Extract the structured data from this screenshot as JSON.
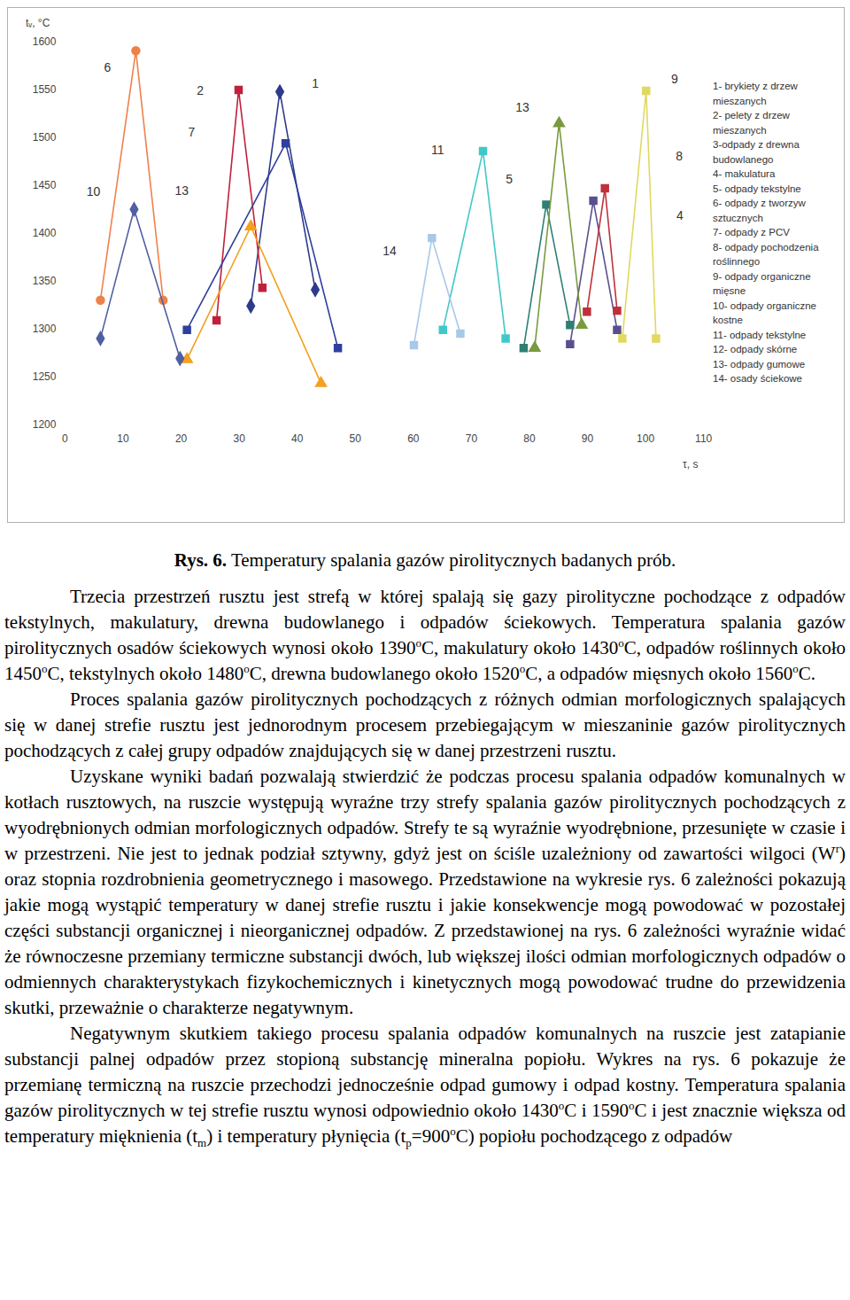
{
  "chart_data": {
    "type": "line",
    "xlabel": "τ, s",
    "ylabel": "tᵥ, °C",
    "xlim": [
      0,
      110
    ],
    "xticks": [
      0,
      10,
      20,
      30,
      40,
      50,
      60,
      70,
      80,
      90,
      100,
      110
    ],
    "ylim": [
      1200,
      1600
    ],
    "yticks": [
      1200,
      1250,
      1300,
      1350,
      1400,
      1450,
      1500,
      1550,
      1600
    ],
    "legend": "right",
    "grid": false,
    "series": [
      {
        "name": "1- brykiety z drzew mieszanych",
        "color": "#2e3a8c",
        "marker": "diamond",
        "x": [
          32,
          37,
          43.1
        ],
        "values": [
          1324,
          1548,
          1341
        ]
      },
      {
        "name": "2- pelety z drzew mieszanych",
        "color": "#c0203c",
        "marker": "square",
        "x": [
          26.1,
          29.9,
          34
        ],
        "values": [
          1309,
          1550,
          1343
        ]
      },
      {
        "name": "3-odpady z drewna budowlanego",
        "color": "#2f3f9e",
        "marker": "square",
        "x": [
          21,
          38,
          47
        ],
        "values": [
          1299,
          1494,
          1280
        ]
      },
      {
        "name": "4- makulatura",
        "color": "#5a4f8e",
        "marker": "square",
        "x": [
          87,
          91,
          95.1
        ],
        "values": [
          1284,
          1434,
          1299
        ]
      },
      {
        "name": "5- odpady tekstylne",
        "color": "#2f7f74",
        "marker": "square",
        "x": [
          79,
          82.9,
          87
        ],
        "values": [
          1280,
          1430,
          1304
        ]
      },
      {
        "name": "6- odpady z tworzyw sztucznych",
        "color": "#f0804a",
        "marker": "circle",
        "x": [
          6.1,
          12.2,
          16.9
        ],
        "values": [
          1330,
          1591,
          1330
        ]
      },
      {
        "name": "7- odpady z PCV",
        "color": "#f4a020",
        "marker": "triangle",
        "x": [
          21,
          32,
          44.1
        ],
        "values": [
          1268,
          1407,
          1243
        ]
      },
      {
        "name": "8- odpady pochodzenia roślinnego",
        "color": "#c0303a",
        "marker": "square",
        "x": [
          89.9,
          93,
          95.1
        ],
        "values": [
          1318,
          1447,
          1319
        ]
      },
      {
        "name": "9- odpady organiczne mięsne",
        "color": "#e0d860",
        "marker": "square",
        "x": [
          96,
          100.1,
          101.8
        ],
        "values": [
          1290,
          1549,
          1290
        ]
      },
      {
        "name": "10- odpady organiczne kostne",
        "color": "#5060a0",
        "marker": "diamond",
        "x": [
          6.1,
          11.9,
          19.8
        ],
        "values": [
          1290,
          1425,
          1269
        ]
      },
      {
        "name": "11- odpady tekstylne",
        "color": "#40c8c8",
        "marker": "square",
        "x": [
          65.1,
          72,
          75.9
        ],
        "values": [
          1299,
          1486,
          1290
        ]
      },
      {
        "name": "12- odpady skórne",
        "color": "#888888",
        "marker": "square",
        "x": [],
        "values": []
      },
      {
        "name": "13- odpady gumowe",
        "color": "#7a9a40",
        "marker": "triangle",
        "x": [
          80.9,
          85.1,
          89
        ],
        "values": [
          1280,
          1515,
          1304
        ]
      },
      {
        "name": "14- osady ściekowe",
        "color": "#a8c8e8",
        "marker": "square",
        "x": [
          60.1,
          63.2,
          68.1
        ],
        "values": [
          1283,
          1395,
          1295
        ]
      }
    ],
    "annotations": [
      {
        "text": "6",
        "x": 7.3,
        "y": 1573
      },
      {
        "text": "10",
        "x": 4.9,
        "y": 1443
      },
      {
        "text": "2",
        "x": 23.3,
        "y": 1549
      },
      {
        "text": "7",
        "x": 21.8,
        "y": 1505
      },
      {
        "text": "13",
        "x": 20.1,
        "y": 1444
      },
      {
        "text": "1",
        "x": 43.1,
        "y": 1556
      },
      {
        "text": "11",
        "x": 64.2,
        "y": 1487
      },
      {
        "text": "14",
        "x": 55.9,
        "y": 1381
      },
      {
        "text": "13",
        "x": 78.8,
        "y": 1531
      },
      {
        "text": "5",
        "x": 76.5,
        "y": 1456
      },
      {
        "text": "9",
        "x": 105,
        "y": 1561
      },
      {
        "text": "8",
        "x": 105.8,
        "y": 1480
      },
      {
        "text": "4",
        "x": 105.9,
        "y": 1418
      }
    ]
  },
  "caption": {
    "label": "Rys. 6.",
    "text": "Temperatury spalania gazów pirolitycznych badanych prób."
  },
  "paragraphs": [
    [
      "Trzecia przestrzeń rusztu jest strefą w której spalają się gazy pirolityczne pochodzące z odpadów tekstylnych, makulatury, drewna budowlanego i odpadów ściekowych. Temperatura spalania gazów pirolitycznych osadów ściekowych wynosi około 1390",
      {
        "sup": "o"
      },
      "C, makulatury około 1430",
      {
        "sup": "o"
      },
      "C, odpadów roślinnych około 1450",
      {
        "sup": "o"
      },
      "C, tekstylnych około 1480",
      {
        "sup": "o"
      },
      "C, drewna budowlanego około 1520",
      {
        "sup": "o"
      },
      "C, a odpadów mięsnych około 1560",
      {
        "sup": "o"
      },
      "C."
    ],
    [
      "Proces spalania gazów pirolitycznych pochodzących z różnych odmian morfologicznych spalających się w danej strefie rusztu jest jednorodnym procesem przebiegającym w mieszaninie gazów pirolitycznych pochodzących z całej grupy odpadów znajdujących się w danej przestrzeni rusztu."
    ],
    [
      "Uzyskane wyniki badań pozwalają stwierdzić że podczas procesu spalania odpadów komunalnych w kotłach rusztowych, na ruszcie występują wyraźne trzy strefy spalania gazów pirolitycznych pochodzących z wyodrębnionych odmian morfologicznych odpadów. Strefy te są wyraźnie wyodrębnione, przesunięte w czasie i w przestrzeni. Nie jest to jednak podział sztywny, gdyż jest on ściśle uzależniony od zawartości wilgoci (W",
      {
        "sup": "r"
      },
      ") oraz stopnia rozdrobnienia geometrycznego i masowego. Przedstawione na wykresie rys. 6 zależności pokazują jakie mogą wystąpić temperatury w danej strefie rusztu i jakie konsekwencje mogą powodować w pozostałej części substancji organicznej i nieorganicznej odpadów. Z przedstawionej na rys. 6 zależności wyraźnie widać że równoczesne przemiany termiczne substancji dwóch, lub większej ilości odmian morfologicznych odpadów o odmiennych charakterystykach fizykochemicznych i kinetycznych mogą powodować trudne do przewidzenia skutki, przeważnie o charakterze negatywnym."
    ],
    [
      "Negatywnym skutkiem takiego procesu spalania odpadów komunalnych na ruszcie jest zatapianie substancji palnej odpadów przez stopioną substancję mineralna popiołu. Wykres na rys. 6 pokazuje że przemianę termiczną na ruszcie przechodzi jednocześnie odpad gumowy i odpad kostny. Temperatura spalania gazów pirolitycznych w tej strefie rusztu wynosi odpowiednio około 1430",
      {
        "sup": "o"
      },
      "C i 1590",
      {
        "sup": "o"
      },
      "C i jest znacznie większa od temperatury mięknienia (t",
      {
        "sub": "m"
      },
      ") i temperatury płynięcia (t",
      {
        "sub": "p"
      },
      "=900",
      {
        "sup": "o"
      },
      "C) popiołu pochodzącego z odpadów"
    ]
  ]
}
